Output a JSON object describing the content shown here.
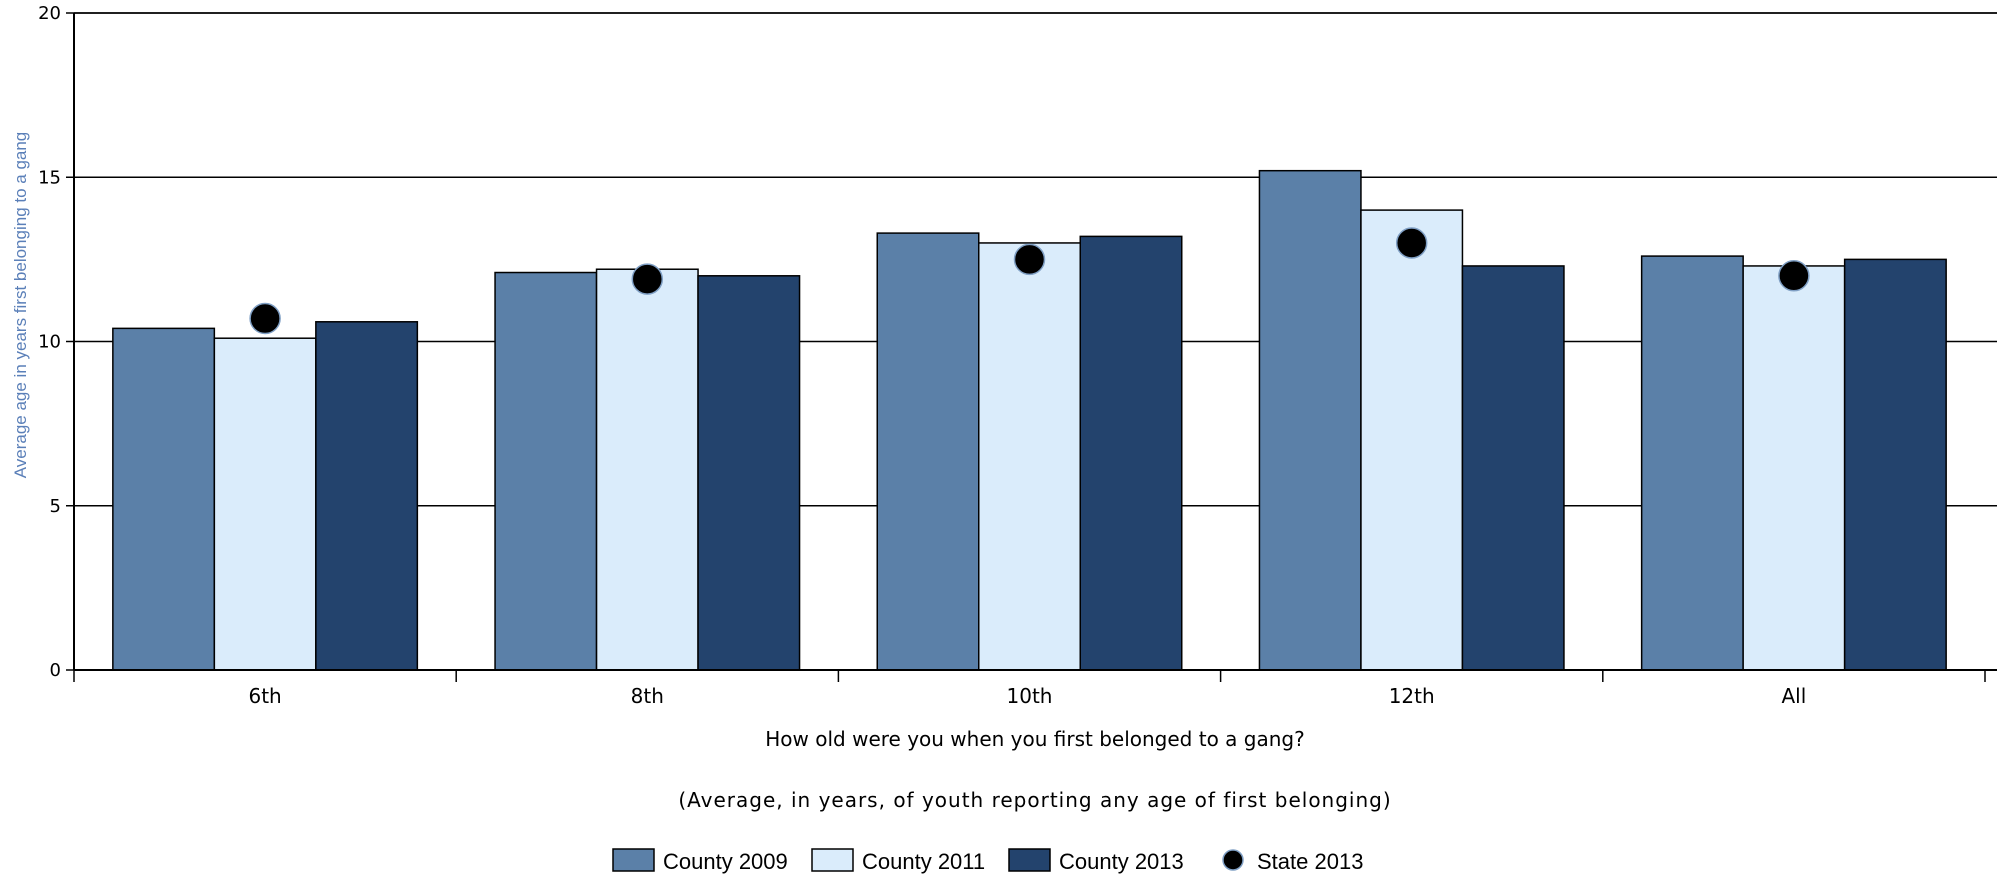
{
  "chart_data": {
    "type": "bar",
    "categories": [
      "6th",
      "8th",
      "10th",
      "12th",
      "All"
    ],
    "series": [
      {
        "name": "County 2009",
        "values": [
          10.4,
          12.1,
          13.3,
          15.2,
          12.6
        ],
        "color": "#5b80a8"
      },
      {
        "name": "County 2011",
        "values": [
          10.1,
          12.2,
          13.0,
          14.0,
          12.3
        ],
        "color": "#daecfb"
      },
      {
        "name": "County 2013",
        "values": [
          10.6,
          12.0,
          13.2,
          12.3,
          12.5
        ],
        "color": "#23436d"
      }
    ],
    "markers": {
      "name": "State 2013",
      "values": [
        10.7,
        11.9,
        12.5,
        13.0,
        12.0
      ],
      "color": "#000000"
    },
    "xlabel": "How old were you when you first belonged to a gang?",
    "subtitle": "(Average, in years, of youth reporting any age of first belonging)",
    "ylabel": "Average age in years first belonging to a gang",
    "ylabel_color": "#5a7fb8",
    "ylim": [
      0,
      20
    ],
    "yticks": [
      0,
      5,
      10,
      15,
      20
    ],
    "grid": true,
    "legend_position": "bottom-center"
  }
}
